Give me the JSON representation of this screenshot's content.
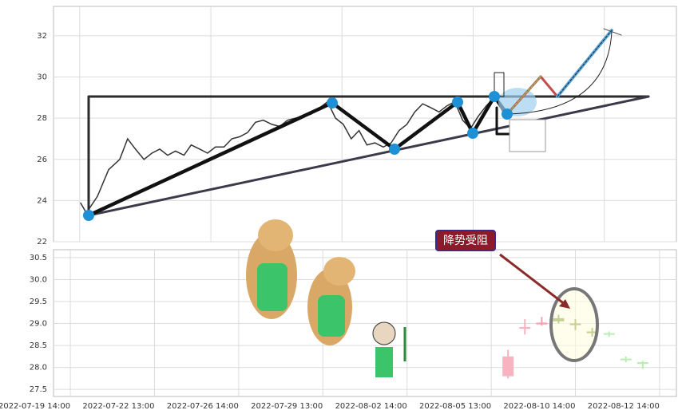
{
  "chart_data": [
    {
      "type": "line",
      "x": [
        4.1,
        5,
        6.7,
        8.4,
        10.1,
        11.3,
        12.5,
        13.8,
        15,
        16.2,
        17.4,
        18.6,
        19.9,
        21,
        22.3,
        23.5,
        24.7,
        26,
        27.2,
        28.4,
        29.6,
        30.8,
        32,
        33.3,
        34.5,
        35.7,
        36.9,
        38.1,
        39.3,
        40.6,
        41.8,
        43,
        44.2,
        45.4,
        46.6,
        47.8,
        49,
        50.3,
        51.5,
        52.7,
        53.9,
        55.1,
        56.3,
        57.6,
        58.8,
        60,
        61.2,
        62.4,
        63.6,
        64.8,
        66,
        67.2,
        68.6
      ],
      "values": [
        23.9,
        23.4,
        24.2,
        25.5,
        26.0,
        27.0,
        26.5,
        26.0,
        26.3,
        26.5,
        26.2,
        26.4,
        26.2,
        26.7,
        26.5,
        26.3,
        26.6,
        26.6,
        27.0,
        27.1,
        27.3,
        27.8,
        27.9,
        27.7,
        27.6,
        27.9,
        28.0,
        28.1,
        28.2,
        28.5,
        28.8,
        28.0,
        27.7,
        27.0,
        27.4,
        26.7,
        26.8,
        26.6,
        26.8,
        27.4,
        27.7,
        28.3,
        28.7,
        28.5,
        28.3,
        28.6,
        28.8,
        27.9,
        27.5,
        28.1,
        28.6,
        29.0,
        28.3
      ],
      "color": "#333333",
      "xlim": [
        0,
        95
      ],
      "xticks": [
        4,
        24,
        44,
        64,
        84
      ],
      "ylim": [
        22,
        33.43
      ],
      "yticks": [
        22,
        24,
        26,
        28,
        30,
        32
      ],
      "grid": true
    },
    {
      "type": "candlestick",
      "annotation": "降势受阻",
      "x": [
        52,
        54,
        56,
        58,
        60,
        62,
        64,
        66,
        68
      ],
      "open": [
        27.8,
        28.88,
        28.98,
        29.12,
        29.0,
        28.82,
        28.78,
        28.2,
        28.12
      ],
      "high": [
        28.4,
        29.1,
        29.15,
        29.2,
        29.1,
        28.9,
        28.82,
        28.25,
        28.15
      ],
      "low": [
        27.75,
        28.75,
        28.95,
        29.0,
        28.85,
        28.7,
        28.7,
        28.12,
        27.97
      ],
      "close": [
        28.25,
        28.92,
        29.02,
        29.05,
        28.98,
        28.78,
        28.75,
        28.18,
        28.08
      ],
      "colors": [
        "#f7b3c0",
        "#f7b3c0",
        "#f4a0b0",
        "#6b8e23",
        "#6b8e23",
        "#6b8e23",
        "#b8efb0",
        "#b8efb0",
        "#b8efb0"
      ],
      "xlim": [
        -2,
        72
      ],
      "xticks": [
        {
          "value": 0,
          "label": "2022-07-19 14:00"
        },
        {
          "value": 10,
          "label": "2022-07-22 13:00"
        },
        {
          "value": 20,
          "label": "2022-07-26 14:00"
        },
        {
          "value": 30,
          "label": "2022-07-29 13:00"
        },
        {
          "value": 40,
          "label": "2022-08-02 14:00"
        },
        {
          "value": 50,
          "label": "2022-08-05 13:00"
        },
        {
          "value": 60,
          "label": "2022-08-10 14:00"
        },
        {
          "value": 70,
          "label": "2022-08-12 14:00"
        }
      ],
      "ylim": [
        27.34,
        30.68
      ],
      "yticks": [
        27.5,
        {
          "value": 28,
          "label": "28.0"
        },
        28.5,
        {
          "value": 29,
          "label": "29.0"
        },
        29.5,
        {
          "value": 30,
          "label": "30.0"
        },
        30.5
      ],
      "grid": true
    }
  ]
}
